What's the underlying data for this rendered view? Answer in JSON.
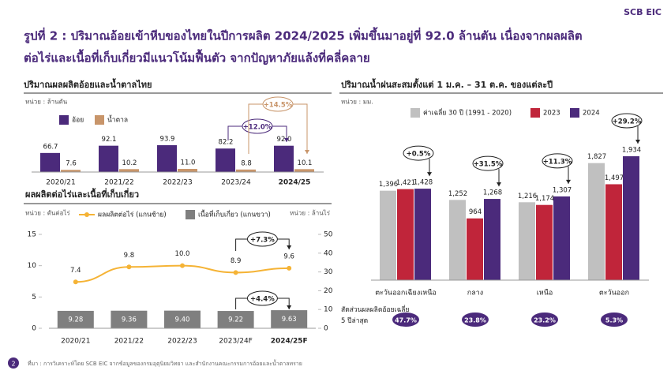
{
  "header": {
    "logo": "SCB EIC",
    "title": "รูปที่ 2 : ปริมาณอ้อยเข้าหีบของไทยในปีการผลิต 2024/2025 เพิ่มขึ้นมาอยู่ที่ 92.0 ล้านตัน เนื่องจากผลผลิต",
    "title_line2": "ต่อไร่และเนื้อที่เก็บเกี่ยวมีแนวโน้มฟื้นตัว จากปัญหาภัยแล้งที่คลี่คลาย"
  },
  "chart_data": [
    {
      "type": "bar",
      "title": "ปริมาณผลผลิตอ้อยและน้ำตาลไทย",
      "unit": "หน่วย : ล้านตัน",
      "categories": [
        "2020/21",
        "2021/22",
        "2022/23",
        "2023/24",
        "2024/25"
      ],
      "series": [
        {
          "name": "อ้อย",
          "color": "#4b2a7b",
          "values": [
            66.7,
            92.1,
            93.9,
            82.2,
            92.0
          ],
          "value_labels": [
            "66.7",
            "92.1",
            "93.9",
            "82.2",
            "92.0"
          ]
        },
        {
          "name": "น้ำตาล",
          "color": "#c8956a",
          "values": [
            7.6,
            10.2,
            11.0,
            8.8,
            10.1
          ],
          "value_labels": [
            "7.6",
            "10.2",
            "11.0",
            "8.8",
            "10.1"
          ]
        }
      ],
      "annotations": [
        "+12.0%",
        "+14.5%"
      ]
    },
    {
      "type": "combo",
      "title": "ผลผลิตต่อไร่และเนื้อที่เก็บเกี่ยว",
      "unit_left": "หน่วย : ตันต่อไร่",
      "unit_right": "หน่วย : ล้านไร่",
      "categories": [
        "2020/21",
        "2021/22",
        "2022/23",
        "2023/24F",
        "2024/25F"
      ],
      "series": [
        {
          "name": "ผลผลิตต่อไร่ (แกนซ้าย)",
          "type": "line",
          "color": "#f5b335",
          "values": [
            7.4,
            9.8,
            10.0,
            8.9,
            9.6
          ],
          "value_labels": [
            "7.4",
            "9.8",
            "10.0",
            "8.9",
            "9.6"
          ]
        },
        {
          "name": "เนื้อที่เก็บเกี่ยว (แกนขวา)",
          "type": "bar",
          "axis": "y2",
          "color": "#7f7f7f",
          "values": [
            9.28,
            9.36,
            9.4,
            9.22,
            9.63
          ],
          "value_labels": [
            "9.28",
            "9.36",
            "9.40",
            "9.22",
            "9.63"
          ]
        }
      ],
      "ylim": [
        0,
        15
      ],
      "yticks": [
        0,
        5,
        10,
        15
      ],
      "y2lim": [
        0,
        50
      ],
      "y2ticks": [
        0,
        10,
        20,
        30,
        40,
        50
      ],
      "annotations": [
        "+7.3%",
        "+4.4%"
      ]
    },
    {
      "type": "bar",
      "title": "ปริมาณน้ำฝนสะสมตั้งแต่ 1 ม.ค. – 31 ต.ค. ของแต่ละปี",
      "unit": "หน่วย : มม.",
      "categories": [
        "ตะวันออกเฉียงเหนือ",
        "กลาง",
        "เหนือ",
        "ตะวันออก"
      ],
      "series": [
        {
          "name": "ค่าเฉลี่ย 30 ปี (1991 - 2020)",
          "color": "#c0c0c0",
          "values": [
            1396,
            1252,
            1216,
            1827
          ],
          "value_labels": [
            "1,396",
            "1,252",
            "1,216",
            "1,827"
          ]
        },
        {
          "name": "2023",
          "color": "#c0253a",
          "values": [
            1421,
            964,
            1174,
            1497
          ],
          "value_labels": [
            "1,421",
            "964",
            "1,174",
            "1,497"
          ]
        },
        {
          "name": "2024",
          "color": "#4b2a7b",
          "values": [
            1428,
            1268,
            1307,
            1934
          ],
          "value_labels": [
            "1,428",
            "1,268",
            "1,307",
            "1,934"
          ]
        }
      ],
      "annotations": [
        "+0.5%",
        "+31.5%",
        "+11.3%",
        "+29.2%"
      ],
      "share_title": "สัดส่วนผลผลิตอ้อยเฉลี่ย 5 ปีล่าสุด",
      "share": [
        47.7,
        23.8,
        23.2,
        5.3
      ],
      "share_labels": [
        "47.7%",
        "23.8%",
        "23.2%",
        "5.3%"
      ]
    }
  ],
  "footer": {
    "page": "2",
    "source": "ที่มา : การวิเคราะห์โดย SCB EIC จากข้อมูลของกรมอุตุนิยมวิทยา และสำนักงานคณะกรรมการอ้อยและน้ำตาลทราย"
  }
}
